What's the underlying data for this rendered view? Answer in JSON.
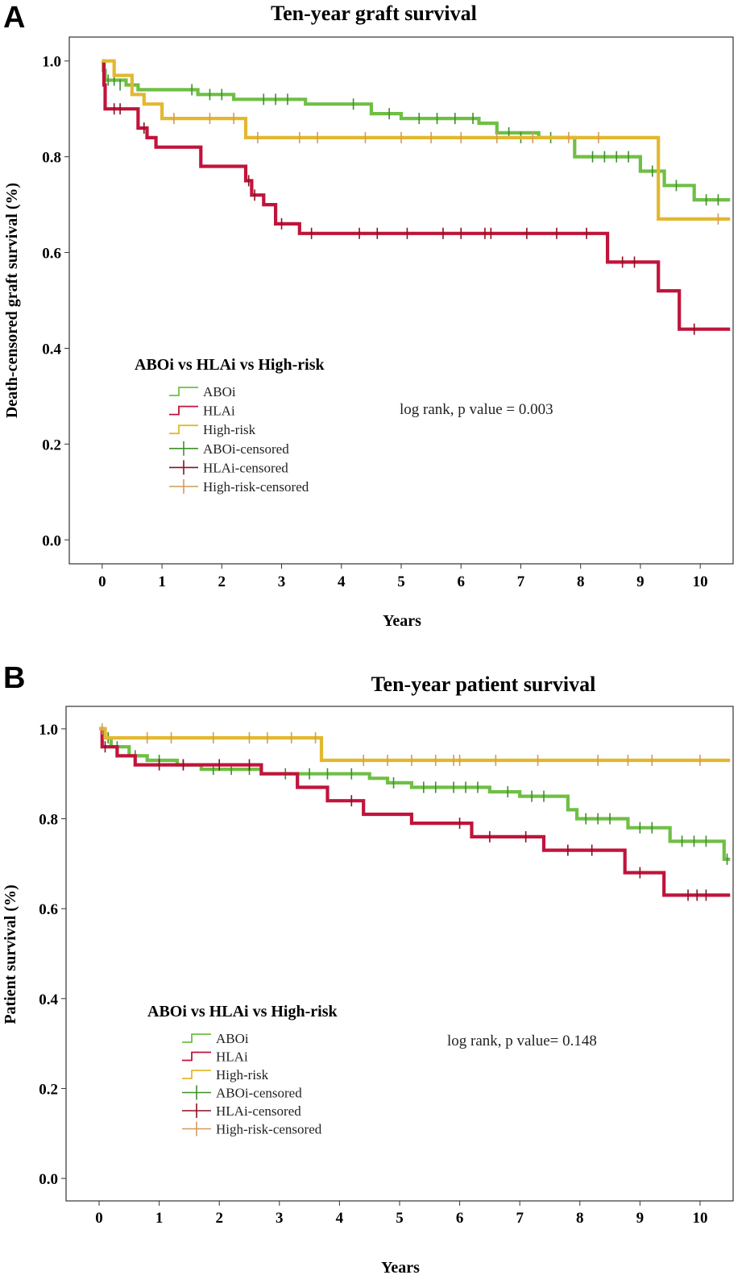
{
  "colors": {
    "aboi": "#6fbf45",
    "hlai": "#c0143c",
    "highrisk": "#e3b82f",
    "aboi_censored": "#3d8f2a",
    "hlai_censored": "#8a1020",
    "highrisk_censored": "#d49a5a"
  },
  "chart_data": [
    {
      "panel": "A",
      "type": "line",
      "subtype": "kaplan-meier-step",
      "title": "Ten-year graft survival",
      "xlabel": "Years",
      "ylabel": "Death-censored graft survival (%)",
      "xlim": [
        -0.55,
        10.55
      ],
      "ylim": [
        -0.05,
        1.05
      ],
      "xticks": [
        "0",
        "1",
        "2",
        "3",
        "4",
        "5",
        "6",
        "7",
        "8",
        "9",
        "10"
      ],
      "yticks": [
        "0.0",
        "0.2",
        "0.4",
        "0.6",
        "0.8",
        "1.0"
      ],
      "legend_title": "ABOi vs HLAi vs High-risk",
      "legend": [
        "ABOi",
        "HLAi",
        "High-risk",
        "ABOi-censored",
        "HLAi-censored",
        "High-risk-censored"
      ],
      "annotation": "log rank, p value = 0.003",
      "series": [
        {
          "name": "ABOi",
          "steps": [
            [
              0,
              1.0
            ],
            [
              0.02,
              0.98
            ],
            [
              0.05,
              0.96
            ],
            [
              0.4,
              0.95
            ],
            [
              0.6,
              0.94
            ],
            [
              1.2,
              0.94
            ],
            [
              1.6,
              0.93
            ],
            [
              2.2,
              0.92
            ],
            [
              3.4,
              0.91
            ],
            [
              4.5,
              0.89
            ],
            [
              5.0,
              0.88
            ],
            [
              6.3,
              0.87
            ],
            [
              6.6,
              0.85
            ],
            [
              7.3,
              0.84
            ],
            [
              7.9,
              0.8
            ],
            [
              9.0,
              0.77
            ],
            [
              9.4,
              0.74
            ],
            [
              9.9,
              0.71
            ],
            [
              10.5,
              0.71
            ]
          ],
          "censored": [
            [
              0.1,
              0.96
            ],
            [
              0.2,
              0.96
            ],
            [
              0.3,
              0.95
            ],
            [
              1.5,
              0.94
            ],
            [
              1.8,
              0.93
            ],
            [
              2.0,
              0.93
            ],
            [
              2.7,
              0.92
            ],
            [
              2.9,
              0.92
            ],
            [
              3.1,
              0.92
            ],
            [
              4.2,
              0.91
            ],
            [
              4.8,
              0.89
            ],
            [
              5.3,
              0.88
            ],
            [
              5.6,
              0.88
            ],
            [
              5.9,
              0.88
            ],
            [
              6.2,
              0.88
            ],
            [
              6.8,
              0.85
            ],
            [
              7.0,
              0.84
            ],
            [
              7.5,
              0.84
            ],
            [
              8.2,
              0.8
            ],
            [
              8.4,
              0.8
            ],
            [
              8.6,
              0.8
            ],
            [
              8.8,
              0.8
            ],
            [
              9.2,
              0.77
            ],
            [
              9.6,
              0.74
            ],
            [
              10.1,
              0.71
            ],
            [
              10.3,
              0.71
            ]
          ]
        },
        {
          "name": "HLAi",
          "steps": [
            [
              0,
              1.0
            ],
            [
              0.03,
              0.95
            ],
            [
              0.05,
              0.9
            ],
            [
              0.4,
              0.9
            ],
            [
              0.6,
              0.86
            ],
            [
              0.75,
              0.84
            ],
            [
              0.9,
              0.82
            ],
            [
              1.3,
              0.82
            ],
            [
              1.65,
              0.78
            ],
            [
              2.4,
              0.75
            ],
            [
              2.5,
              0.72
            ],
            [
              2.7,
              0.7
            ],
            [
              2.9,
              0.66
            ],
            [
              3.3,
              0.64
            ],
            [
              8.45,
              0.64
            ],
            [
              8.45,
              0.58
            ],
            [
              9.3,
              0.58
            ],
            [
              9.3,
              0.52
            ],
            [
              9.65,
              0.52
            ],
            [
              9.65,
              0.44
            ],
            [
              10.5,
              0.44
            ]
          ],
          "censored": [
            [
              0.2,
              0.9
            ],
            [
              0.3,
              0.9
            ],
            [
              0.7,
              0.86
            ],
            [
              2.45,
              0.75
            ],
            [
              2.55,
              0.72
            ],
            [
              3.0,
              0.66
            ],
            [
              3.5,
              0.64
            ],
            [
              4.3,
              0.64
            ],
            [
              4.6,
              0.64
            ],
            [
              5.1,
              0.64
            ],
            [
              5.7,
              0.64
            ],
            [
              6.0,
              0.64
            ],
            [
              6.4,
              0.64
            ],
            [
              6.5,
              0.64
            ],
            [
              7.1,
              0.64
            ],
            [
              7.6,
              0.64
            ],
            [
              8.1,
              0.64
            ],
            [
              8.7,
              0.58
            ],
            [
              8.9,
              0.58
            ],
            [
              9.9,
              0.44
            ]
          ]
        },
        {
          "name": "High-risk",
          "steps": [
            [
              0,
              1.0
            ],
            [
              0.2,
              1.0
            ],
            [
              0.2,
              0.97
            ],
            [
              0.5,
              0.97
            ],
            [
              0.5,
              0.93
            ],
            [
              0.7,
              0.93
            ],
            [
              0.7,
              0.91
            ],
            [
              1.0,
              0.91
            ],
            [
              1.0,
              0.88
            ],
            [
              2.4,
              0.88
            ],
            [
              2.4,
              0.84
            ],
            [
              9.3,
              0.84
            ],
            [
              9.3,
              0.67
            ],
            [
              10.5,
              0.67
            ]
          ],
          "censored": [
            [
              1.2,
              0.88
            ],
            [
              1.8,
              0.88
            ],
            [
              2.2,
              0.88
            ],
            [
              2.6,
              0.84
            ],
            [
              3.3,
              0.84
            ],
            [
              3.6,
              0.84
            ],
            [
              4.4,
              0.84
            ],
            [
              5.0,
              0.84
            ],
            [
              5.5,
              0.84
            ],
            [
              6.0,
              0.84
            ],
            [
              6.6,
              0.84
            ],
            [
              7.2,
              0.84
            ],
            [
              7.8,
              0.84
            ],
            [
              8.3,
              0.84
            ],
            [
              10.3,
              0.67
            ]
          ]
        }
      ]
    },
    {
      "panel": "B",
      "type": "line",
      "subtype": "kaplan-meier-step",
      "title": "Ten-year patient survival",
      "xlabel": "Years",
      "ylabel": "Patient survival (%)",
      "xlim": [
        -0.55,
        10.55
      ],
      "ylim": [
        -0.05,
        1.05
      ],
      "xticks": [
        "0",
        "1",
        "2",
        "3",
        "4",
        "5",
        "6",
        "7",
        "8",
        "9",
        "10"
      ],
      "yticks": [
        "0.0",
        "0.2",
        "0.4",
        "0.6",
        "0.8",
        "1.0"
      ],
      "legend_title": "ABOi vs HLAi vs High-risk",
      "legend": [
        "ABOi",
        "HLAi",
        "High-risk",
        "ABOi-censored",
        "HLAi-censored",
        "High-risk-censored"
      ],
      "annotation": "log rank, p value= 0.148",
      "series": [
        {
          "name": "ABOi",
          "steps": [
            [
              0,
              1.0
            ],
            [
              0.1,
              0.98
            ],
            [
              0.2,
              0.96
            ],
            [
              0.5,
              0.94
            ],
            [
              0.8,
              0.93
            ],
            [
              1.3,
              0.92
            ],
            [
              1.7,
              0.91
            ],
            [
              2.7,
              0.9
            ],
            [
              4.5,
              0.89
            ],
            [
              4.8,
              0.88
            ],
            [
              5.2,
              0.87
            ],
            [
              6.5,
              0.86
            ],
            [
              7.0,
              0.85
            ],
            [
              7.8,
              0.82
            ],
            [
              7.95,
              0.8
            ],
            [
              8.8,
              0.78
            ],
            [
              9.5,
              0.75
            ],
            [
              10.4,
              0.71
            ],
            [
              10.5,
              0.71
            ]
          ],
          "censored": [
            [
              0.15,
              0.98
            ],
            [
              0.3,
              0.96
            ],
            [
              0.6,
              0.94
            ],
            [
              1.0,
              0.93
            ],
            [
              1.4,
              0.92
            ],
            [
              1.9,
              0.91
            ],
            [
              2.2,
              0.91
            ],
            [
              2.5,
              0.91
            ],
            [
              3.1,
              0.9
            ],
            [
              3.5,
              0.9
            ],
            [
              3.8,
              0.9
            ],
            [
              4.2,
              0.9
            ],
            [
              4.9,
              0.88
            ],
            [
              5.4,
              0.87
            ],
            [
              5.6,
              0.87
            ],
            [
              5.9,
              0.87
            ],
            [
              6.1,
              0.87
            ],
            [
              6.3,
              0.87
            ],
            [
              6.8,
              0.86
            ],
            [
              7.2,
              0.85
            ],
            [
              7.4,
              0.85
            ],
            [
              8.1,
              0.8
            ],
            [
              8.3,
              0.8
            ],
            [
              8.5,
              0.8
            ],
            [
              9.0,
              0.78
            ],
            [
              9.2,
              0.78
            ],
            [
              9.7,
              0.75
            ],
            [
              9.9,
              0.75
            ],
            [
              10.1,
              0.75
            ],
            [
              10.45,
              0.71
            ]
          ]
        },
        {
          "name": "HLAi",
          "steps": [
            [
              0,
              1.0
            ],
            [
              0.05,
              0.96
            ],
            [
              0.3,
              0.94
            ],
            [
              0.6,
              0.92
            ],
            [
              2.7,
              0.9
            ],
            [
              3.3,
              0.87
            ],
            [
              3.8,
              0.84
            ],
            [
              4.4,
              0.81
            ],
            [
              5.2,
              0.79
            ],
            [
              6.2,
              0.76
            ],
            [
              7.4,
              0.73
            ],
            [
              8.75,
              0.68
            ],
            [
              9.4,
              0.63
            ],
            [
              10.5,
              0.63
            ]
          ],
          "censored": [
            [
              0.1,
              0.96
            ],
            [
              1.0,
              0.92
            ],
            [
              1.4,
              0.92
            ],
            [
              2.0,
              0.92
            ],
            [
              2.5,
              0.92
            ],
            [
              4.2,
              0.84
            ],
            [
              6.0,
              0.79
            ],
            [
              6.5,
              0.76
            ],
            [
              7.1,
              0.76
            ],
            [
              7.8,
              0.73
            ],
            [
              8.2,
              0.73
            ],
            [
              9.0,
              0.68
            ],
            [
              9.8,
              0.63
            ],
            [
              9.95,
              0.63
            ],
            [
              10.1,
              0.63
            ]
          ]
        },
        {
          "name": "High-risk",
          "steps": [
            [
              0,
              1.0
            ],
            [
              0.1,
              0.98
            ],
            [
              3.7,
              0.98
            ],
            [
              3.7,
              0.93
            ],
            [
              10.5,
              0.93
            ]
          ],
          "censored": [
            [
              0.05,
              1.0
            ],
            [
              0.8,
              0.98
            ],
            [
              1.2,
              0.98
            ],
            [
              1.9,
              0.98
            ],
            [
              2.5,
              0.98
            ],
            [
              2.8,
              0.98
            ],
            [
              3.2,
              0.98
            ],
            [
              3.6,
              0.98
            ],
            [
              4.4,
              0.93
            ],
            [
              4.8,
              0.93
            ],
            [
              5.2,
              0.93
            ],
            [
              5.6,
              0.93
            ],
            [
              5.9,
              0.93
            ],
            [
              6.0,
              0.93
            ],
            [
              6.6,
              0.93
            ],
            [
              7.3,
              0.93
            ],
            [
              8.3,
              0.93
            ],
            [
              8.8,
              0.93
            ],
            [
              9.2,
              0.93
            ],
            [
              10.0,
              0.93
            ]
          ]
        }
      ]
    }
  ]
}
